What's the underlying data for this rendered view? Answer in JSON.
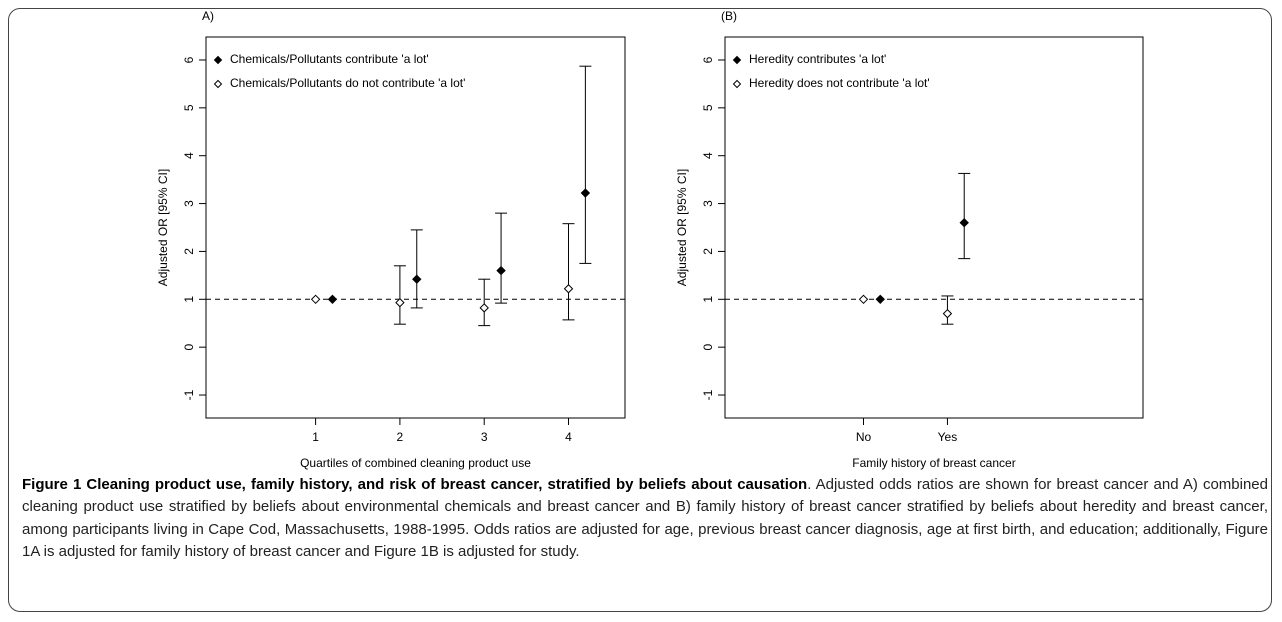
{
  "chart_data": [
    {
      "type": "errorbar",
      "panel_label": "A)",
      "xlabel": "Quartiles of combined cleaning product use",
      "ylabel": "Adjusted OR [95% CI]",
      "xlim": [
        -0.3,
        4.67
      ],
      "xticks": [
        1,
        2,
        3,
        4
      ],
      "ylim": [
        -1.48,
        6.48
      ],
      "yticks": [
        -1,
        0,
        1,
        2,
        3,
        4,
        5,
        6
      ],
      "reference_line": 1,
      "series": [
        {
          "name": "Chemicals/Pollutants contribute 'a lot'",
          "color": "#000000",
          "fill": "#000000",
          "x": [
            1.2,
            2.2,
            3.2,
            4.2
          ],
          "values": [
            1.0,
            1.42,
            1.6,
            3.22
          ],
          "lower": [
            null,
            0.82,
            0.92,
            1.75
          ],
          "upper": [
            null,
            2.45,
            2.8,
            5.87
          ]
        },
        {
          "name": "Chemicals/Pollutants do not contribute 'a lot'",
          "color": "#000000",
          "fill": "#ffffff",
          "x": [
            1,
            2,
            3,
            4
          ],
          "values": [
            1.0,
            0.93,
            0.82,
            1.22
          ],
          "lower": [
            null,
            0.48,
            0.45,
            0.57
          ],
          "upper": [
            null,
            1.7,
            1.42,
            2.58
          ]
        }
      ]
    },
    {
      "type": "errorbar",
      "panel_label": "(B)",
      "xlabel": "Family history of breast cancer",
      "ylabel": "Adjusted OR [95% CI]",
      "xlim": [
        -0.65,
        4.33
      ],
      "xticks": [
        {
          "value": 1,
          "label": "No"
        },
        {
          "value": 2,
          "label": "Yes"
        }
      ],
      "ylim": [
        -1.48,
        6.48
      ],
      "yticks": [
        -1,
        0,
        1,
        2,
        3,
        4,
        5,
        6
      ],
      "reference_line": 1,
      "series": [
        {
          "name": "Heredity contributes 'a lot'",
          "color": "#000000",
          "fill": "#000000",
          "x": [
            1.2,
            2.2
          ],
          "values": [
            1.0,
            2.6
          ],
          "lower": [
            null,
            1.85
          ],
          "upper": [
            null,
            3.63
          ]
        },
        {
          "name": "Heredity does not contribute 'a lot'",
          "color": "#000000",
          "fill": "#ffffff",
          "x": [
            1,
            2
          ],
          "values": [
            1.0,
            0.7
          ],
          "lower": [
            null,
            0.48
          ],
          "upper": [
            null,
            1.07
          ]
        }
      ]
    }
  ],
  "caption": {
    "title": "Figure 1 Cleaning product use, family history, and risk of breast cancer, stratified by beliefs about causation",
    "text": ". Adjusted odds ratios are shown for breast cancer and A) combined cleaning product use stratified by beliefs about environmental chemicals and breast cancer and B) family history of breast cancer stratified by beliefs about heredity and breast cancer, among participants living in Cape Cod, Massachusetts, 1988-1995. Odds ratios are adjusted for age, previous breast cancer diagnosis, age at first birth, and education; additionally, Figure 1A is adjusted for family history of breast cancer and Figure 1B is adjusted for study."
  }
}
